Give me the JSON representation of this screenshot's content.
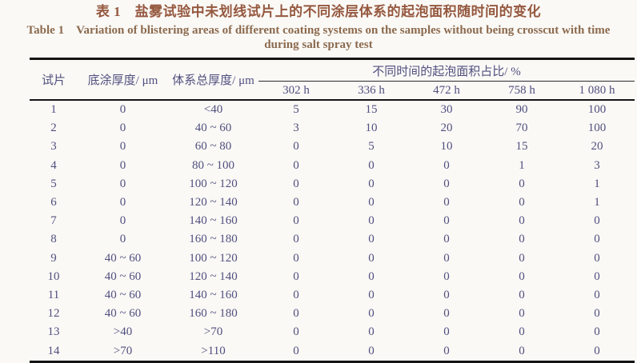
{
  "title": {
    "zh": "表 1　盐雾试验中未划线试片上的不同涂层体系的起泡面积随时间的变化",
    "en_line1": "Table 1　Variation of blistering areas of different coating systems on the samples without being crosscut with time",
    "en_line2": "during salt spray test"
  },
  "table": {
    "col_keys": [
      "sample",
      "primer-thickness",
      "total-thickness",
      "302h",
      "336h",
      "472h",
      "758h",
      "1080h"
    ],
    "col_headers": {
      "sample": "试片",
      "primer": "底涂厚度/ μm",
      "total": "体系总厚度/ μm",
      "span": "不同时间的起泡面积占比/ %",
      "times": [
        "302 h",
        "336 h",
        "472 h",
        "758 h",
        "1 080 h"
      ]
    },
    "rows": [
      [
        "1",
        "0",
        "<40",
        "5",
        "15",
        "30",
        "90",
        "100"
      ],
      [
        "2",
        "0",
        "40 ~ 60",
        "3",
        "10",
        "20",
        "70",
        "100"
      ],
      [
        "3",
        "0",
        "60 ~ 80",
        "0",
        "5",
        "10",
        "15",
        "20"
      ],
      [
        "4",
        "0",
        "80 ~ 100",
        "0",
        "0",
        "0",
        "1",
        "3"
      ],
      [
        "5",
        "0",
        "100 ~ 120",
        "0",
        "0",
        "0",
        "0",
        "1"
      ],
      [
        "6",
        "0",
        "120 ~ 140",
        "0",
        "0",
        "0",
        "0",
        "1"
      ],
      [
        "7",
        "0",
        "140 ~ 160",
        "0",
        "0",
        "0",
        "0",
        "0"
      ],
      [
        "8",
        "0",
        "160 ~ 180",
        "0",
        "0",
        "0",
        "0",
        "0"
      ],
      [
        "9",
        "40 ~ 60",
        "100 ~ 120",
        "0",
        "0",
        "0",
        "0",
        "0"
      ],
      [
        "10",
        "40 ~ 60",
        "120 ~ 140",
        "0",
        "0",
        "0",
        "0",
        "0"
      ],
      [
        "11",
        "40 ~ 60",
        "140 ~ 160",
        "0",
        "0",
        "0",
        "0",
        "0"
      ],
      [
        "12",
        "40 ~ 60",
        "160 ~ 180",
        "0",
        "0",
        "0",
        "0",
        "0"
      ],
      [
        "13",
        ">40",
        ">70",
        "0",
        "0",
        "0",
        "0",
        "0"
      ],
      [
        "14",
        ">70",
        ">110",
        "0",
        "0",
        "0",
        "0",
        "0"
      ]
    ]
  },
  "colors": {
    "title_zh": "#95583f",
    "title_en": "#8c6a4e",
    "table_text": "#514f7e",
    "rule": "#141414",
    "background": "#faf9f6"
  }
}
